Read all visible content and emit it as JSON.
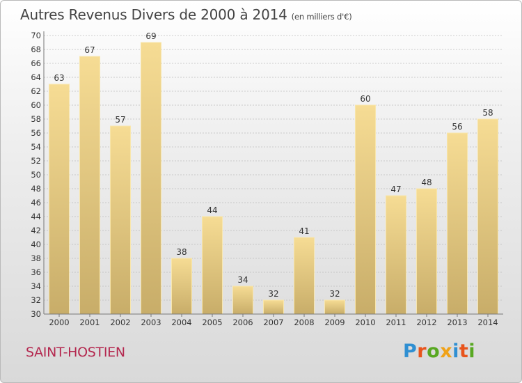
{
  "title": "Autres Revenus Divers de 2000 à 2014",
  "title_unit": "(en milliers d'€)",
  "place_name": "SAINT-HOSTIEN",
  "logo": {
    "text": "Proxiti",
    "colors": [
      "#2f8fd2",
      "#e8541c",
      "#58a822",
      "#f0a218",
      "#2f8fd2",
      "#e8541c",
      "#58a822"
    ]
  },
  "colors": {
    "bar_light": "#f6dc94",
    "bar_dark": "#c8ad69",
    "title": "#444444",
    "place": "#b4284f",
    "grid": "#bdbdbd"
  },
  "chart_data": {
    "type": "bar",
    "title": "Autres Revenus Divers de 2000 à 2014",
    "categories": [
      "2000",
      "2001",
      "2002",
      "2003",
      "2004",
      "2005",
      "2006",
      "2007",
      "2008",
      "2009",
      "2010",
      "2011",
      "2012",
      "2013",
      "2014"
    ],
    "values": [
      63,
      67,
      57,
      69,
      38,
      44,
      34,
      32,
      41,
      32,
      60,
      47,
      48,
      56,
      58
    ],
    "ylim": [
      30,
      70
    ],
    "ytick_step": 2,
    "xlabel": "",
    "ylabel": "",
    "grid": true,
    "data_labels": true
  }
}
